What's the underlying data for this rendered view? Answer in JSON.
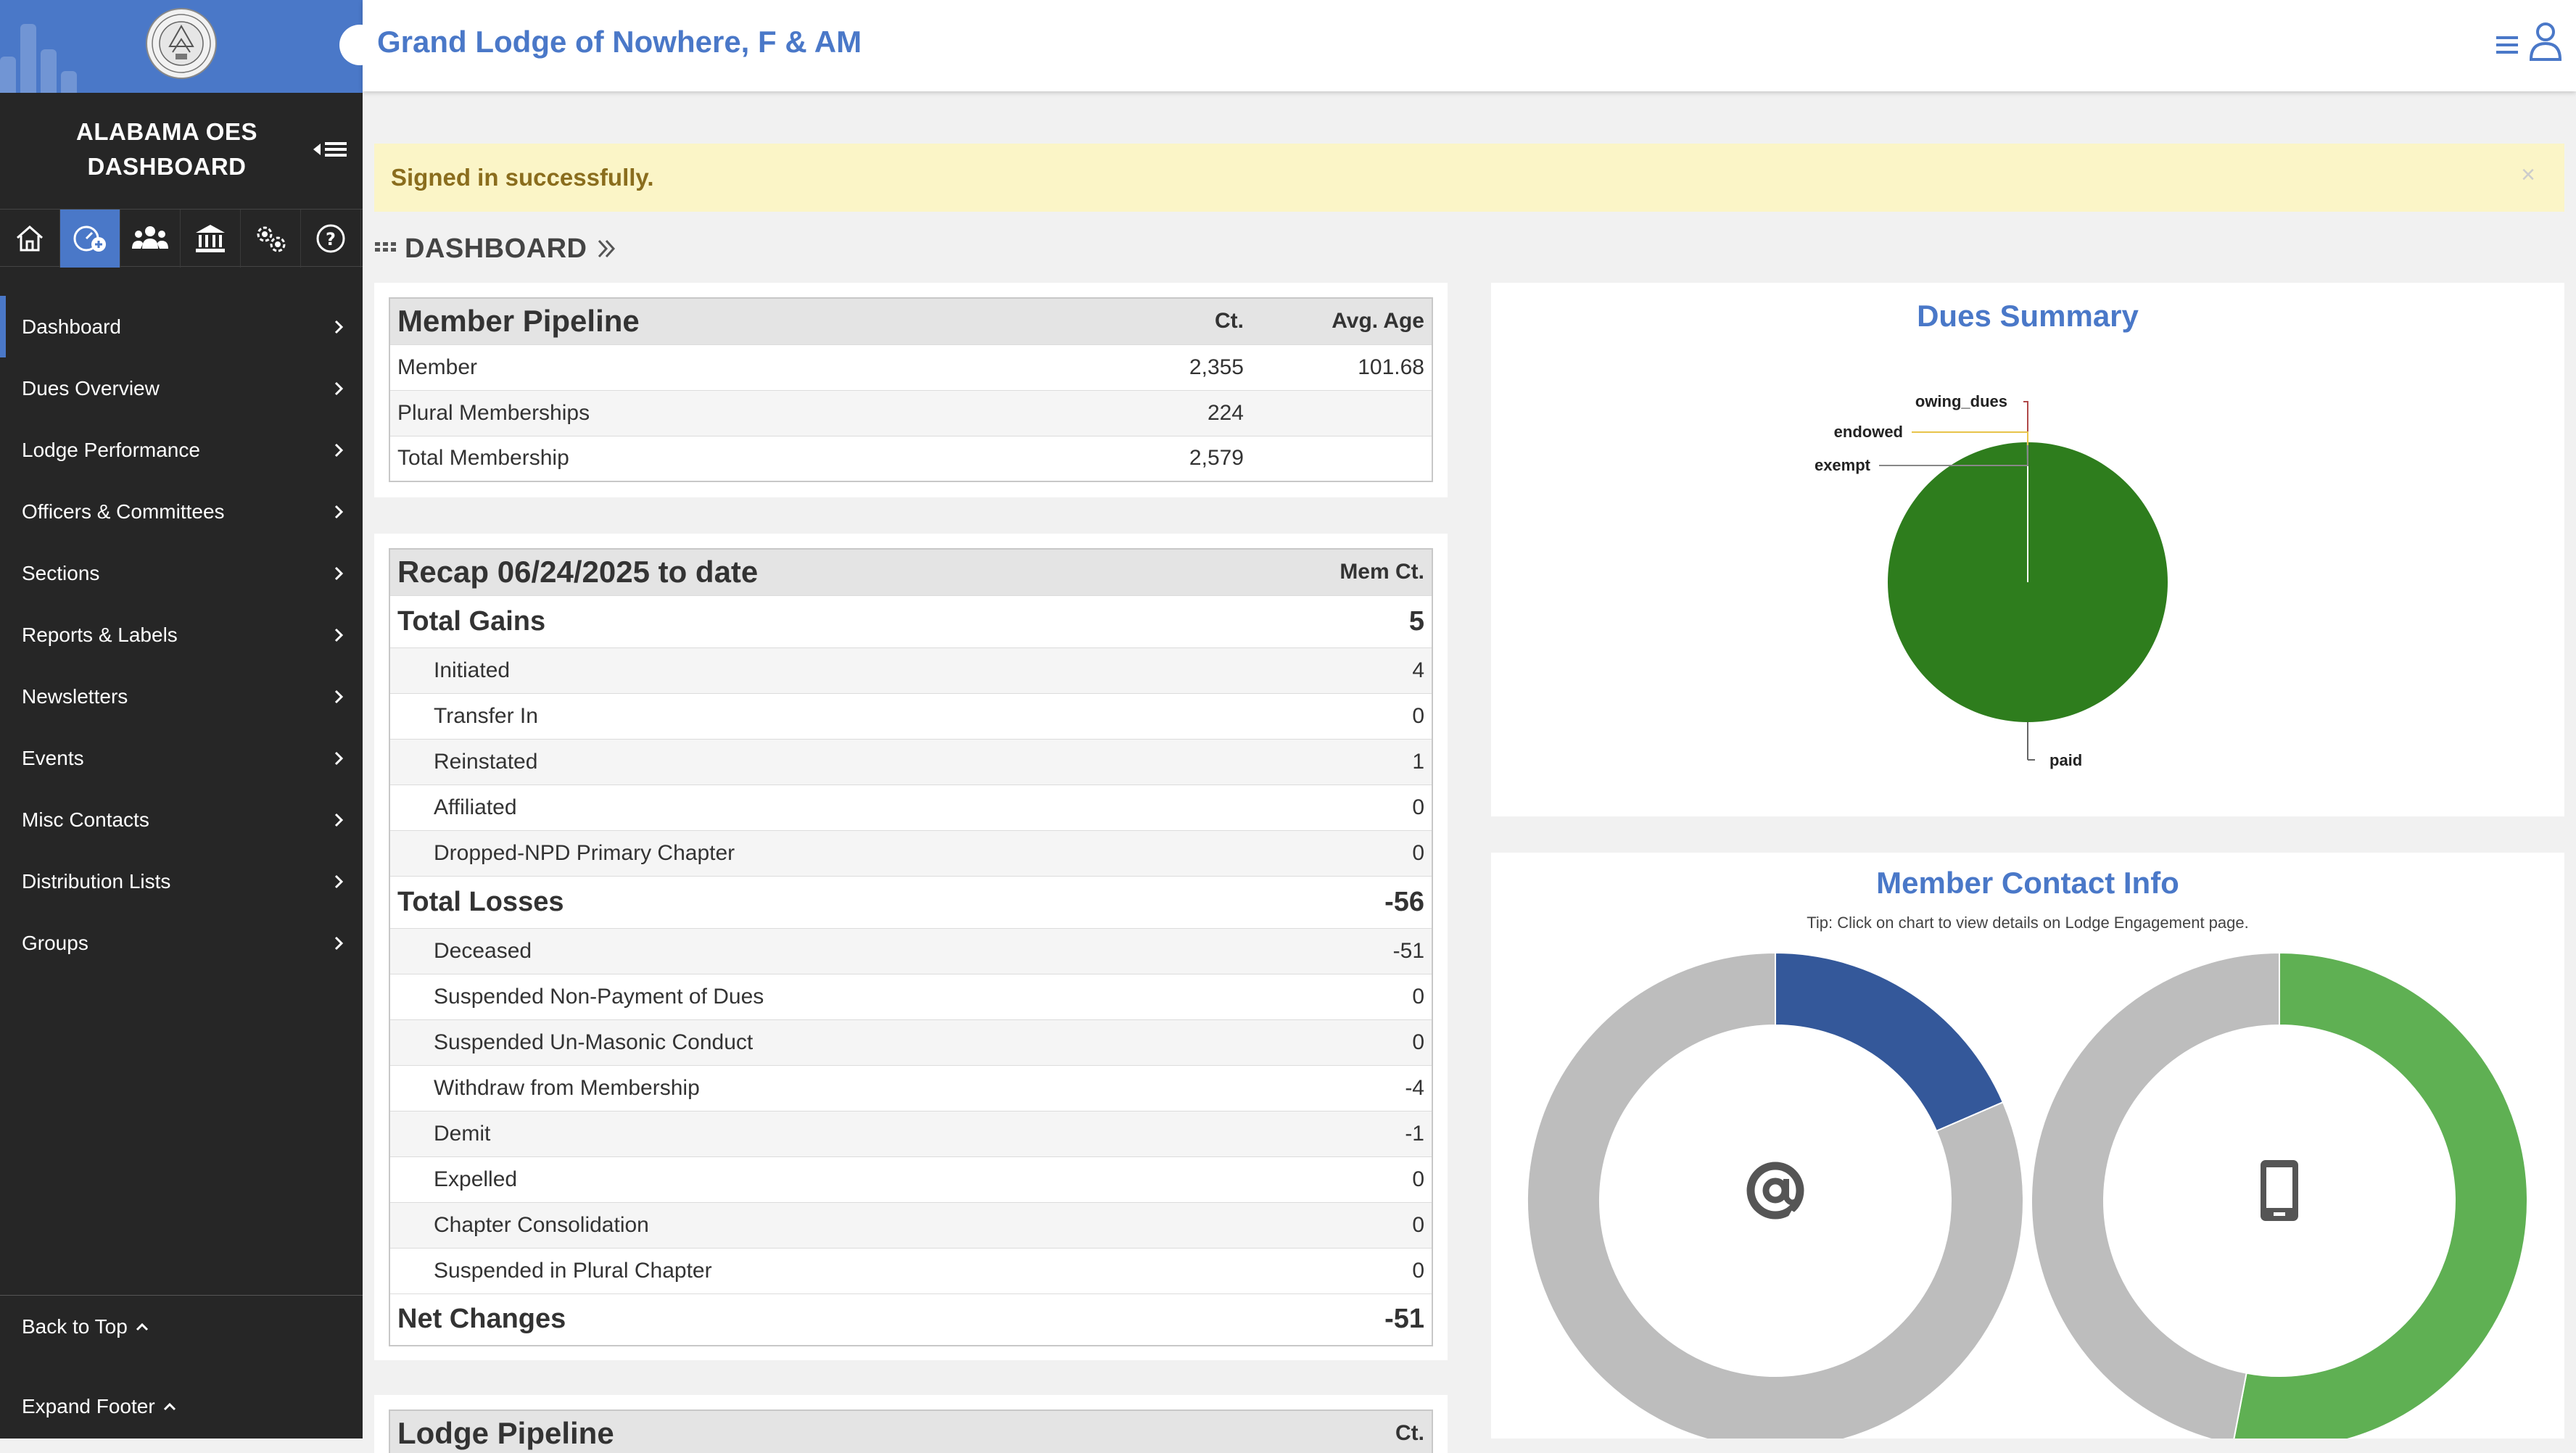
{
  "sidebar": {
    "org_title_line1": "ALABAMA OES",
    "org_title_line2": "DASHBOARD",
    "toolbar_icons": [
      "home-icon",
      "dashboard-gauge-icon",
      "members-icon",
      "lodge-building-icon",
      "settings-gears-icon",
      "help-icon"
    ],
    "nav_items": [
      {
        "label": "Dashboard"
      },
      {
        "label": "Dues Overview"
      },
      {
        "label": "Lodge Performance"
      },
      {
        "label": "Officers & Committees"
      },
      {
        "label": "Sections"
      },
      {
        "label": "Reports & Labels"
      },
      {
        "label": "Newsletters"
      },
      {
        "label": "Events"
      },
      {
        "label": "Misc Contacts"
      },
      {
        "label": "Distribution Lists"
      },
      {
        "label": "Groups"
      }
    ],
    "back_to_top": "Back to Top",
    "expand_footer": "Expand Footer"
  },
  "header": {
    "title": "Grand Lodge of Nowhere, F & AM"
  },
  "alert": {
    "message": "Signed in successfully.",
    "close": "×"
  },
  "breadcrumb": {
    "label": "DASHBOARD"
  },
  "member_pipeline": {
    "title": "Member Pipeline",
    "col_ct": "Ct.",
    "col_age": "Avg. Age",
    "rows": [
      {
        "label": "Member",
        "ct": "2,355",
        "age": "101.68"
      },
      {
        "label": "Plural Memberships",
        "ct": "224",
        "age": ""
      },
      {
        "label": "Total Membership",
        "ct": "2,579",
        "age": ""
      }
    ]
  },
  "recap": {
    "title": "Recap 06/24/2025 to date",
    "col_ct": "Mem Ct.",
    "total_gains": {
      "label": "Total Gains",
      "value": "5"
    },
    "gains": [
      {
        "label": "Initiated",
        "value": "4"
      },
      {
        "label": "Transfer In",
        "value": "0"
      },
      {
        "label": "Reinstated",
        "value": "1"
      },
      {
        "label": "Affiliated",
        "value": "0"
      },
      {
        "label": "Dropped-NPD Primary Chapter",
        "value": "0"
      }
    ],
    "total_losses": {
      "label": "Total Losses",
      "value": "-56"
    },
    "losses": [
      {
        "label": "Deceased",
        "value": "-51"
      },
      {
        "label": "Suspended Non-Payment of Dues",
        "value": "0"
      },
      {
        "label": "Suspended Un-Masonic Conduct",
        "value": "0"
      },
      {
        "label": "Withdraw from Membership",
        "value": "-4"
      },
      {
        "label": "Demit",
        "value": "-1"
      },
      {
        "label": "Expelled",
        "value": "0"
      },
      {
        "label": "Chapter Consolidation",
        "value": "0"
      },
      {
        "label": "Suspended in Plural Chapter",
        "value": "0"
      }
    ],
    "net_changes": {
      "label": "Net Changes",
      "value": "-51"
    }
  },
  "lodge_pipeline": {
    "title": "Lodge Pipeline",
    "col_ct": "Ct."
  },
  "chart_data": [
    {
      "type": "pie",
      "title": "Dues Summary",
      "categories": [
        "paid",
        "owing_dues",
        "endowed",
        "exempt"
      ],
      "values": [
        99.9,
        0.05,
        0.03,
        0.02
      ],
      "colors": [
        "#2e7d1d",
        "#4a78c8",
        "#f5c518",
        "#999999"
      ]
    },
    {
      "type": "pie",
      "title": "Member Contact Info",
      "subtitle": "Tip: Click on chart to view details on Lodge Engagement page.",
      "donuts": [
        {
          "icon": "email-at-icon",
          "colors": [
            "#34589a",
            "#bdbdbd"
          ],
          "values": [
            18.5,
            81.5
          ]
        },
        {
          "icon": "mobile-phone-icon",
          "colors": [
            "#5fb053",
            "#bdbdbd"
          ],
          "values": [
            53,
            47
          ]
        }
      ]
    }
  ],
  "colors": {
    "accent": "#4a78c8",
    "sidebar_bg": "#262626",
    "alert_bg": "#fbf5c7",
    "alert_text": "#8a6d1d"
  }
}
